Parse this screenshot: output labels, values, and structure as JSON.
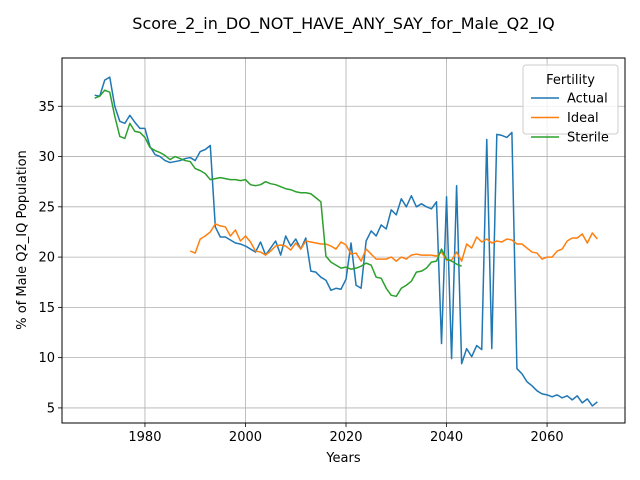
{
  "chart_data": {
    "type": "line",
    "title": "Score_2_in_DO_NOT_HAVE_ANY_SAY_for_Male_Q2_IQ",
    "xlabel": "Years",
    "ylabel": "% of Male Q2_IQ Population",
    "xlim": [
      1963.5,
      2075.5
    ],
    "ylim": [
      3.5,
      39.8
    ],
    "xticks": [
      1980,
      2000,
      2020,
      2040,
      2060
    ],
    "yticks": [
      5,
      10,
      15,
      20,
      25,
      30,
      35
    ],
    "grid": true,
    "legend": {
      "title": "Fertility",
      "placement": "top-right"
    },
    "series": [
      {
        "name": "Actual",
        "color": "#1f77b4",
        "x": [
          1970,
          1971,
          1972,
          1973,
          1974,
          1975,
          1976,
          1977,
          1978,
          1979,
          1980,
          1981,
          1982,
          1983,
          1984,
          1985,
          1986,
          1987,
          1988,
          1989,
          1990,
          1991,
          1992,
          1993,
          1994,
          1995,
          1996,
          1997,
          1998,
          1999,
          2000,
          2001,
          2002,
          2003,
          2004,
          2005,
          2006,
          2007,
          2008,
          2009,
          2010,
          2011,
          2012,
          2013,
          2014,
          2015,
          2016,
          2017,
          2018,
          2019,
          2020,
          2021,
          2022,
          2023,
          2024,
          2025,
          2026,
          2027,
          2028,
          2029,
          2030,
          2031,
          2032,
          2033,
          2034,
          2035,
          2036,
          2037,
          2038,
          2039,
          2040,
          2041,
          2042,
          2043,
          2044,
          2045,
          2046,
          2047,
          2048,
          2049,
          2050,
          2051,
          2052,
          2053,
          2054,
          2055,
          2056,
          2057,
          2058,
          2059,
          2060,
          2061,
          2062,
          2063,
          2064,
          2065,
          2066,
          2067,
          2068,
          2069,
          2070
        ],
        "values": [
          36.1,
          36.0,
          37.6,
          37.9,
          35.0,
          33.5,
          33.3,
          34.1,
          33.4,
          32.8,
          32.8,
          31.0,
          30.2,
          30.0,
          29.6,
          29.4,
          29.5,
          29.6,
          29.8,
          29.9,
          29.6,
          30.5,
          30.7,
          31.1,
          23.0,
          22.0,
          22.0,
          21.7,
          21.4,
          21.3,
          21.1,
          20.8,
          20.5,
          21.5,
          20.2,
          20.9,
          21.6,
          20.2,
          22.1,
          21.1,
          21.8,
          20.8,
          21.9,
          18.6,
          18.5,
          18.0,
          17.7,
          16.7,
          16.9,
          16.8,
          17.8,
          21.4,
          17.2,
          16.9,
          21.6,
          22.6,
          22.1,
          23.2,
          22.8,
          24.7,
          24.2,
          25.8,
          25.0,
          26.1,
          25.0,
          25.3,
          25.0,
          24.8,
          25.5,
          11.4,
          26.0,
          9.9,
          27.1,
          9.4,
          10.9,
          10.1,
          11.2,
          10.8,
          31.7,
          10.9,
          32.2,
          32.1,
          31.9,
          32.4,
          8.9,
          8.4,
          7.6,
          7.2,
          6.7,
          6.4,
          6.3,
          6.1,
          6.3,
          6.0,
          6.2,
          5.8,
          6.2,
          5.5,
          5.9,
          5.2,
          5.6
        ]
      },
      {
        "name": "Ideal",
        "color": "#ff7f0e",
        "x": [
          1989,
          1990,
          1991,
          1992,
          1993,
          1994,
          1995,
          1996,
          1997,
          1998,
          1999,
          2000,
          2001,
          2002,
          2003,
          2004,
          2005,
          2006,
          2007,
          2008,
          2009,
          2010,
          2011,
          2012,
          2013,
          2014,
          2015,
          2016,
          2017,
          2018,
          2019,
          2020,
          2021,
          2022,
          2023,
          2024,
          2025,
          2026,
          2027,
          2028,
          2029,
          2030,
          2031,
          2032,
          2033,
          2034,
          2035,
          2036,
          2037,
          2038,
          2039,
          2040,
          2041,
          2042,
          2043,
          2044,
          2045,
          2046,
          2047,
          2048,
          2049,
          2050,
          2051,
          2052,
          2053,
          2054,
          2055,
          2056,
          2057,
          2058,
          2059,
          2060,
          2061,
          2062,
          2063,
          2064,
          2065,
          2066,
          2067,
          2068,
          2069,
          2070
        ],
        "values": [
          20.6,
          20.4,
          21.8,
          22.1,
          22.5,
          23.3,
          23.1,
          23.0,
          22.1,
          22.7,
          21.6,
          22.1,
          21.5,
          20.6,
          20.5,
          20.2,
          20.6,
          21.1,
          21.2,
          21.1,
          20.7,
          21.4,
          20.8,
          21.6,
          21.5,
          21.4,
          21.3,
          21.3,
          21.1,
          20.8,
          21.5,
          21.2,
          20.3,
          20.4,
          19.6,
          20.8,
          20.3,
          19.8,
          19.8,
          19.8,
          20.0,
          19.6,
          20.0,
          19.8,
          20.2,
          20.3,
          20.2,
          20.2,
          20.2,
          20.1,
          20.5,
          19.7,
          19.7,
          20.5,
          19.6,
          21.3,
          20.9,
          22.0,
          21.5,
          21.8,
          21.4,
          21.6,
          21.5,
          21.8,
          21.7,
          21.3,
          21.3,
          20.9,
          20.5,
          20.4,
          19.8,
          20.0,
          20.0,
          20.6,
          20.8,
          21.6,
          21.9,
          21.9,
          22.3,
          21.4,
          22.4,
          21.8
        ]
      },
      {
        "name": "Sterile",
        "color": "#2ca02c",
        "x": [
          1970,
          1971,
          1972,
          1973,
          1974,
          1975,
          1976,
          1977,
          1978,
          1979,
          1980,
          1981,
          1982,
          1983,
          1984,
          1985,
          1986,
          1987,
          1988,
          1989,
          1990,
          1991,
          1992,
          1993,
          1994,
          1995,
          1996,
          1997,
          1998,
          1999,
          2000,
          2001,
          2002,
          2003,
          2004,
          2005,
          2006,
          2007,
          2008,
          2009,
          2010,
          2011,
          2012,
          2013,
          2014,
          2015,
          2016,
          2017,
          2018,
          2019,
          2020,
          2021,
          2022,
          2023,
          2024,
          2025,
          2026,
          2027,
          2028,
          2029,
          2030,
          2031,
          2032,
          2033,
          2034,
          2035,
          2036,
          2037,
          2038,
          2039,
          2040,
          2041,
          2042,
          2043
        ],
        "values": [
          35.8,
          36.0,
          36.6,
          36.4,
          34.0,
          32.0,
          31.8,
          33.3,
          32.5,
          32.4,
          31.9,
          30.9,
          30.6,
          30.4,
          30.1,
          29.7,
          30.0,
          29.8,
          29.6,
          29.5,
          28.8,
          28.6,
          28.3,
          27.7,
          27.8,
          27.9,
          27.8,
          27.7,
          27.7,
          27.6,
          27.7,
          27.2,
          27.1,
          27.2,
          27.5,
          27.3,
          27.2,
          27.0,
          26.8,
          26.7,
          26.5,
          26.4,
          26.4,
          26.3,
          25.9,
          25.5,
          20.1,
          19.5,
          19.2,
          18.9,
          19.0,
          18.8,
          18.9,
          19.1,
          19.4,
          19.2,
          18.0,
          17.9,
          16.9,
          16.2,
          16.1,
          16.9,
          17.2,
          17.6,
          18.5,
          18.6,
          18.9,
          19.5,
          19.6,
          20.8,
          19.8,
          19.6,
          19.3,
          19.1
        ]
      }
    ]
  }
}
